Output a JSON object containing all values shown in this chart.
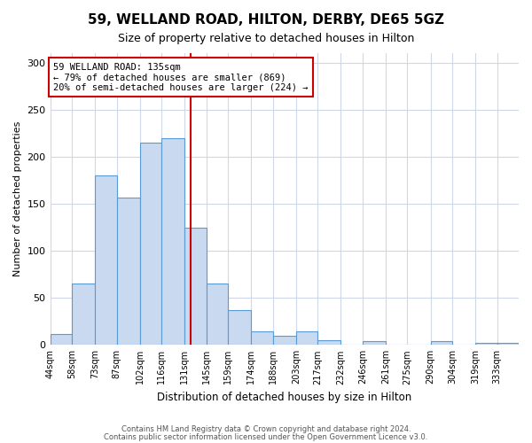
{
  "title": "59, WELLAND ROAD, HILTON, DERBY, DE65 5GZ",
  "subtitle": "Size of property relative to detached houses in Hilton",
  "xlabel": "Distribution of detached houses by size in Hilton",
  "ylabel": "Number of detached properties",
  "bin_labels": [
    "44sqm",
    "58sqm",
    "73sqm",
    "87sqm",
    "102sqm",
    "116sqm",
    "131sqm",
    "145sqm",
    "159sqm",
    "174sqm",
    "188sqm",
    "203sqm",
    "217sqm",
    "232sqm",
    "246sqm",
    "261sqm",
    "275sqm",
    "290sqm",
    "304sqm",
    "319sqm",
    "333sqm"
  ],
  "bin_edges": [
    44,
    58,
    73,
    87,
    102,
    116,
    131,
    145,
    159,
    174,
    188,
    203,
    217,
    232,
    246,
    261,
    275,
    290,
    304,
    319,
    333,
    347
  ],
  "bar_heights": [
    12,
    65,
    180,
    157,
    215,
    220,
    125,
    65,
    37,
    14,
    10,
    14,
    5,
    0,
    4,
    0,
    0,
    4,
    0,
    2,
    2
  ],
  "bar_facecolor": "#c9d9f0",
  "bar_edgecolor": "#5b9bd5",
  "property_value": 135,
  "vline_color": "#cc0000",
  "annotation_title": "59 WELLAND ROAD: 135sqm",
  "annotation_line1": "← 79% of detached houses are smaller (869)",
  "annotation_line2": "20% of semi-detached houses are larger (224) →",
  "annotation_box_edgecolor": "#cc0000",
  "footer_line1": "Contains HM Land Registry data © Crown copyright and database right 2024.",
  "footer_line2": "Contains public sector information licensed under the Open Government Licence v3.0.",
  "ylim": [
    0,
    310
  ],
  "background_color": "#ffffff",
  "grid_color": "#d0d8e8"
}
